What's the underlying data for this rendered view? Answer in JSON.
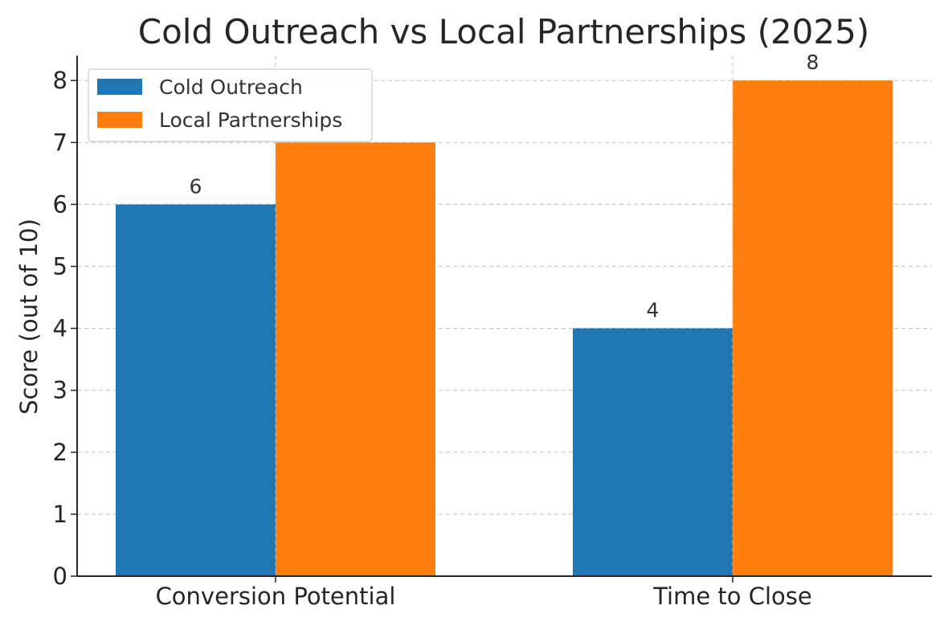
{
  "chart_data": {
    "type": "bar",
    "title": "Cold Outreach vs Local Partnerships (2025)",
    "xlabel": "",
    "ylabel": "Score (out of 10)",
    "categories": [
      "Conversion Potential",
      "Time to Close"
    ],
    "series": [
      {
        "name": "Cold Outreach",
        "values": [
          6,
          4
        ],
        "color": "#1f77b4"
      },
      {
        "name": "Local Partnerships",
        "values": [
          7,
          8
        ],
        "color": "#ff7f0e"
      }
    ],
    "data_labels": [
      [
        "6",
        "4"
      ],
      [
        "",
        "8"
      ]
    ],
    "ylim": [
      0,
      8.4
    ],
    "yticks": [
      "0",
      "1",
      "2",
      "3",
      "4",
      "5",
      "6",
      "7",
      "8"
    ],
    "grid": true,
    "legend_position": "top-left"
  }
}
